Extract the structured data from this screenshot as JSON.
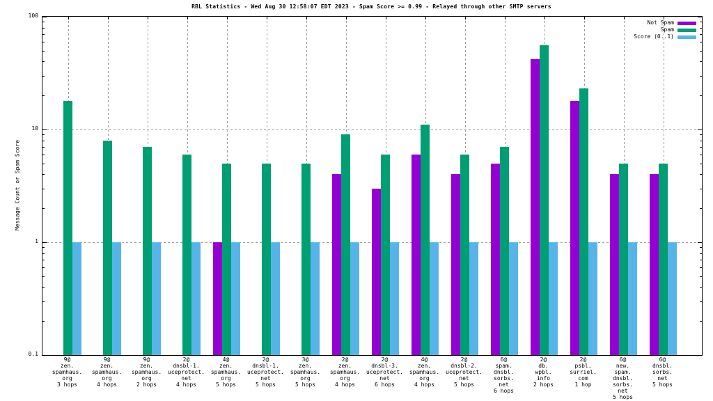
{
  "title": "RBL Statistics - Wed Aug 30 12:58:07 EDT 2023 - Spam Score >= 0.99 - Relayed through other SMTP servers",
  "chart_data": {
    "type": "bar",
    "title": "RBL Statistics - Wed Aug 30 12:58:07 EDT 2023 - Spam Score >= 0.99 - Relayed through other SMTP servers",
    "ylabel": "Message Count or Spam Score",
    "xlabel": "",
    "yscale": "log",
    "ylim": [
      0.1,
      100
    ],
    "ytick_labels": [
      "100",
      "10",
      "1",
      "0.1"
    ],
    "grid": true,
    "legend_position": "top-right",
    "categories": [
      [
        "9@",
        "zen.",
        "spamhaus.",
        "org",
        "3 hops"
      ],
      [
        "9@",
        "zen.",
        "spamhaus.",
        "org",
        "4 hops"
      ],
      [
        "9@",
        "zen.",
        "spamhaus.",
        "org",
        "2 hops"
      ],
      [
        "2@",
        "dnsbl-1.",
        "uceprotect.",
        "net",
        "4 hops"
      ],
      [
        "4@",
        "zen.",
        "spamhaus.",
        "org",
        "5 hops"
      ],
      [
        "2@",
        "dnsbl-1.",
        "uceprotect.",
        "net",
        "5 hops"
      ],
      [
        "3@",
        "zen.",
        "spamhaus.",
        "org",
        "5 hops"
      ],
      [
        "2@",
        "zen.",
        "spamhaus.",
        "org",
        "4 hops"
      ],
      [
        "2@",
        "dnsbl-3.",
        "uceprotect.",
        "net",
        "6 hops"
      ],
      [
        "4@",
        "zen.",
        "spamhaus.",
        "org",
        "4 hops"
      ],
      [
        "2@",
        "dnsbl-2.",
        "uceprotect.",
        "net",
        "5 hops"
      ],
      [
        "6@",
        "spam.",
        "dnsbl.",
        "sorbs.",
        "net",
        "6 hops"
      ],
      [
        "2@",
        "db.",
        "wpbl.",
        "info",
        "2 hops"
      ],
      [
        "2@",
        "psbl.",
        "surriel.",
        "com",
        "1 hop"
      ],
      [
        "6@",
        "new.",
        "spam.",
        "dnsbl.",
        "sorbs.",
        "net",
        "5 hops"
      ],
      [
        "6@",
        "dnsbl.",
        "sorbs.",
        "net",
        "5 hops"
      ]
    ],
    "series": [
      {
        "name": "Not Spam",
        "color": "#9400d3",
        "values": [
          null,
          null,
          null,
          null,
          1,
          null,
          null,
          4,
          3,
          6,
          4,
          5,
          42,
          18,
          4,
          4
        ]
      },
      {
        "name": "Spam",
        "color": "#009e73",
        "values": [
          18,
          8,
          7,
          6,
          5,
          5,
          5,
          9,
          6,
          11,
          6,
          7,
          56,
          23,
          5,
          5
        ]
      },
      {
        "name": "Score (0..1)",
        "color": "#56b4e9",
        "values": [
          1,
          1,
          1,
          1,
          1,
          1,
          1,
          1,
          1,
          1,
          1,
          1,
          1,
          1,
          1,
          1
        ]
      }
    ]
  }
}
